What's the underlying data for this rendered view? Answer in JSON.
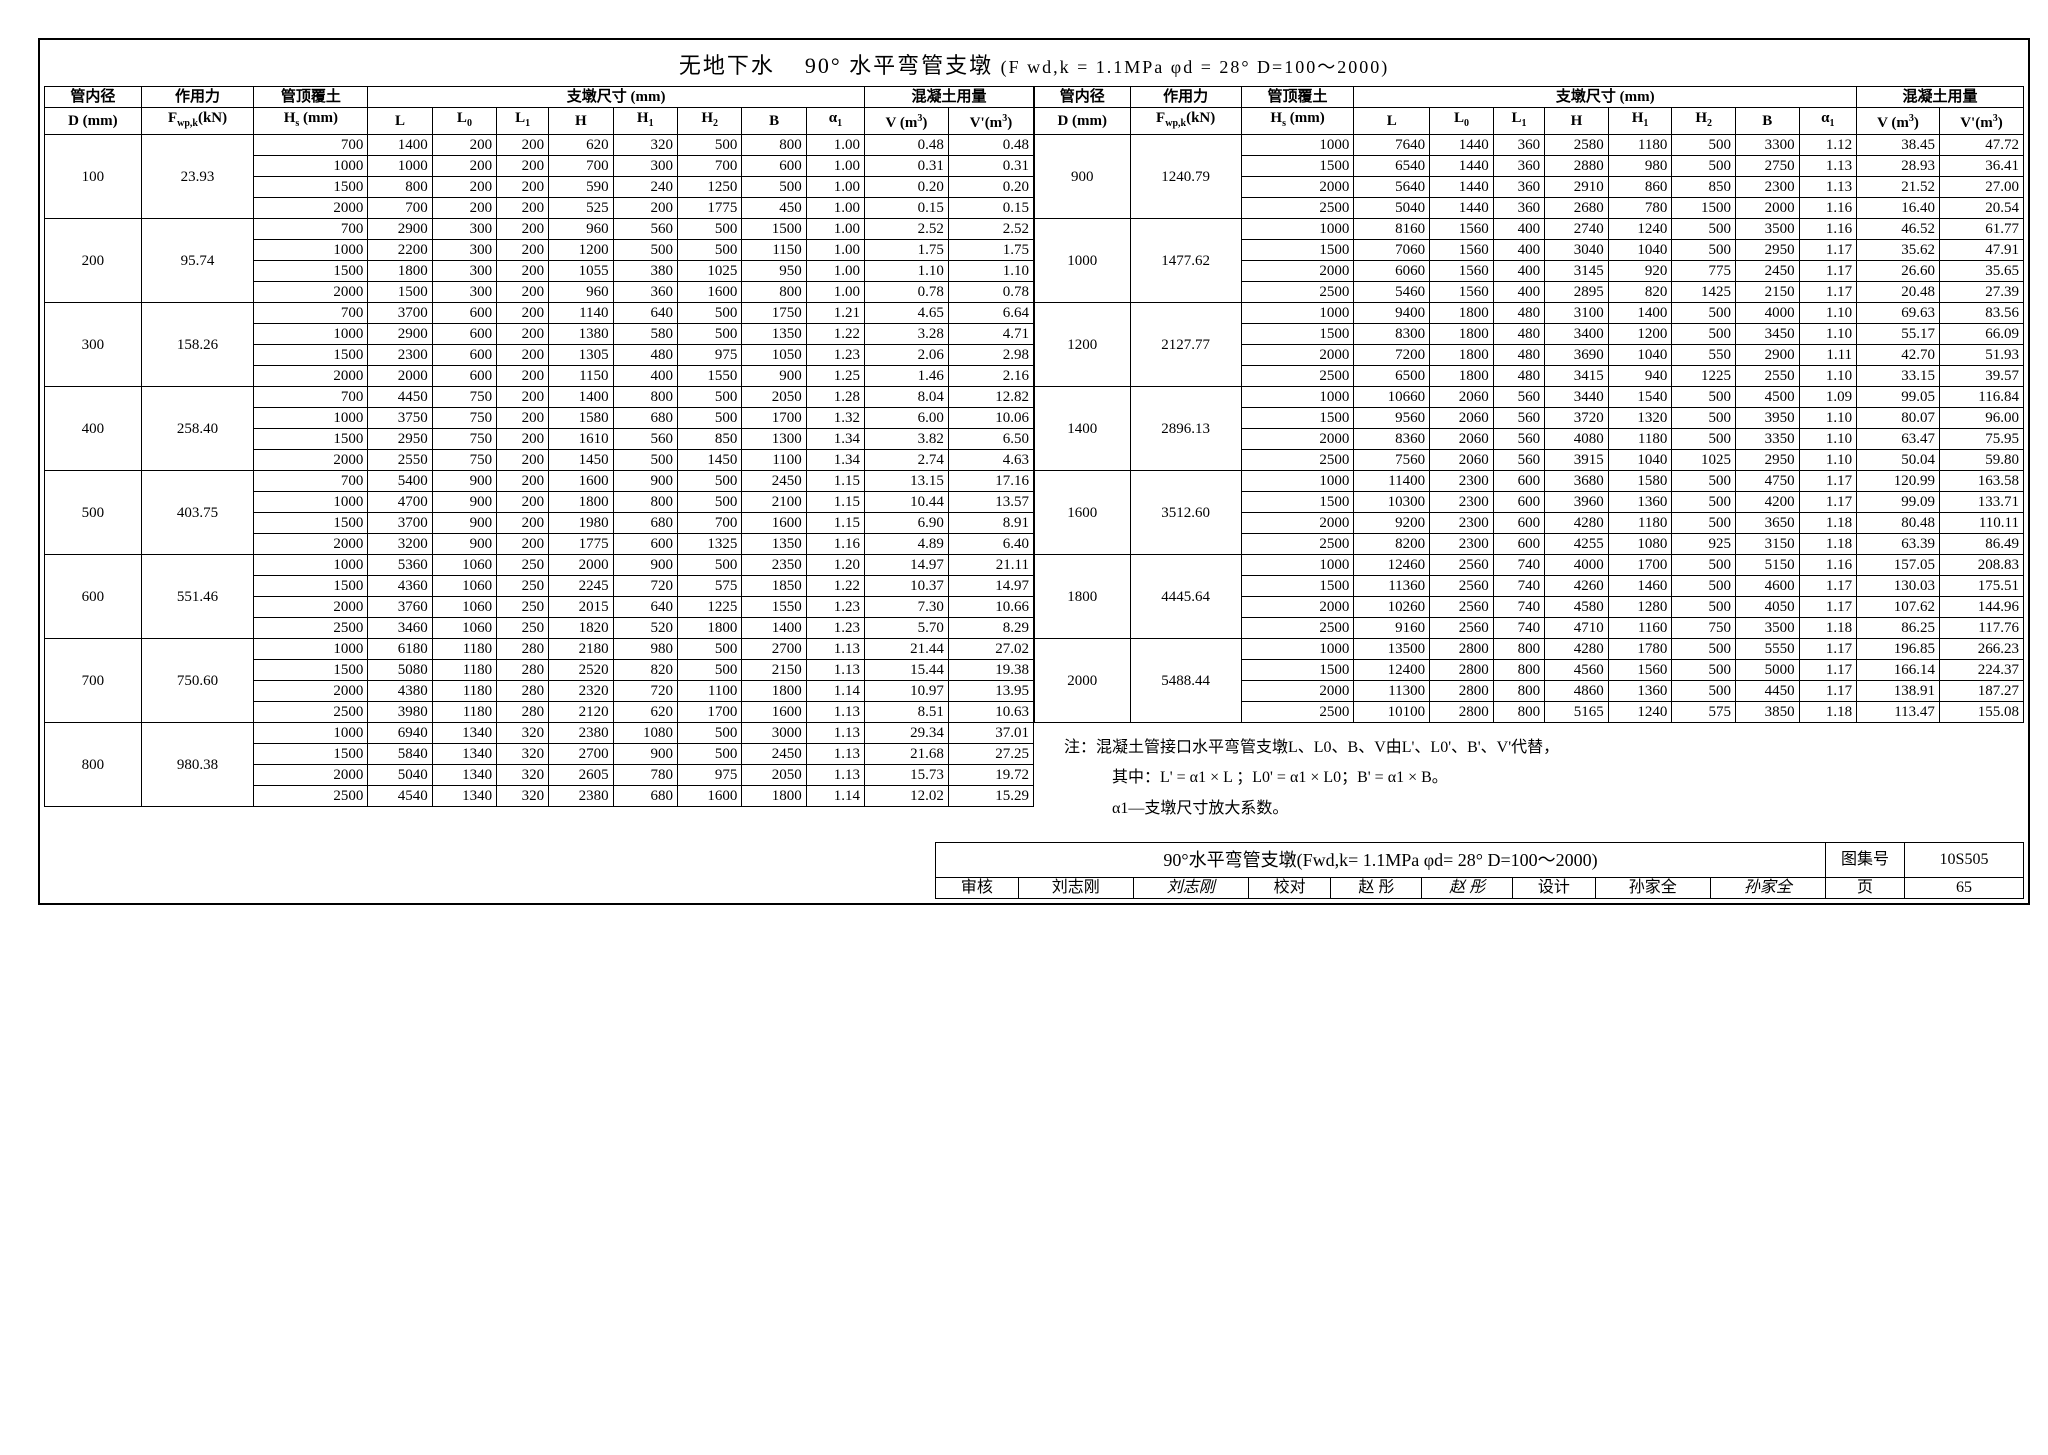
{
  "title_part1": "无地下水",
  "title_part2": "90° 水平弯管支墩",
  "title_params": "(F wd,k = 1.1MPa  φd = 28° D=100～2000)",
  "header_group": {
    "c1": "管内径",
    "c2": "作用力",
    "c3": "管顶覆土",
    "c4": "支墩尺寸 (mm)",
    "c5": "混凝土用量"
  },
  "header_sub": {
    "D": "D (mm)",
    "F": "Fwp,k(kN)",
    "Hs": "Hs (mm)",
    "L": "L",
    "L0": "L0",
    "L1": "L1",
    "H": "H",
    "H1": "H1",
    "H2": "H2",
    "B": "B",
    "a1": "α1",
    "V": "V (m³)",
    "Vp": "V'(m³)"
  },
  "left_groups": [
    {
      "D": "100",
      "F": "23.93",
      "rows": [
        [
          "700",
          "1400",
          "200",
          "200",
          "620",
          "320",
          "500",
          "800",
          "1.00",
          "0.48",
          "0.48"
        ],
        [
          "1000",
          "1000",
          "200",
          "200",
          "700",
          "300",
          "700",
          "600",
          "1.00",
          "0.31",
          "0.31"
        ],
        [
          "1500",
          "800",
          "200",
          "200",
          "590",
          "240",
          "1250",
          "500",
          "1.00",
          "0.20",
          "0.20"
        ],
        [
          "2000",
          "700",
          "200",
          "200",
          "525",
          "200",
          "1775",
          "450",
          "1.00",
          "0.15",
          "0.15"
        ]
      ]
    },
    {
      "D": "200",
      "F": "95.74",
      "rows": [
        [
          "700",
          "2900",
          "300",
          "200",
          "960",
          "560",
          "500",
          "1500",
          "1.00",
          "2.52",
          "2.52"
        ],
        [
          "1000",
          "2200",
          "300",
          "200",
          "1200",
          "500",
          "500",
          "1150",
          "1.00",
          "1.75",
          "1.75"
        ],
        [
          "1500",
          "1800",
          "300",
          "200",
          "1055",
          "380",
          "1025",
          "950",
          "1.00",
          "1.10",
          "1.10"
        ],
        [
          "2000",
          "1500",
          "300",
          "200",
          "960",
          "360",
          "1600",
          "800",
          "1.00",
          "0.78",
          "0.78"
        ]
      ]
    },
    {
      "D": "300",
      "F": "158.26",
      "rows": [
        [
          "700",
          "3700",
          "600",
          "200",
          "1140",
          "640",
          "500",
          "1750",
          "1.21",
          "4.65",
          "6.64"
        ],
        [
          "1000",
          "2900",
          "600",
          "200",
          "1380",
          "580",
          "500",
          "1350",
          "1.22",
          "3.28",
          "4.71"
        ],
        [
          "1500",
          "2300",
          "600",
          "200",
          "1305",
          "480",
          "975",
          "1050",
          "1.23",
          "2.06",
          "2.98"
        ],
        [
          "2000",
          "2000",
          "600",
          "200",
          "1150",
          "400",
          "1550",
          "900",
          "1.25",
          "1.46",
          "2.16"
        ]
      ]
    },
    {
      "D": "400",
      "F": "258.40",
      "rows": [
        [
          "700",
          "4450",
          "750",
          "200",
          "1400",
          "800",
          "500",
          "2050",
          "1.28",
          "8.04",
          "12.82"
        ],
        [
          "1000",
          "3750",
          "750",
          "200",
          "1580",
          "680",
          "500",
          "1700",
          "1.32",
          "6.00",
          "10.06"
        ],
        [
          "1500",
          "2950",
          "750",
          "200",
          "1610",
          "560",
          "850",
          "1300",
          "1.34",
          "3.82",
          "6.50"
        ],
        [
          "2000",
          "2550",
          "750",
          "200",
          "1450",
          "500",
          "1450",
          "1100",
          "1.34",
          "2.74",
          "4.63"
        ]
      ]
    },
    {
      "D": "500",
      "F": "403.75",
      "rows": [
        [
          "700",
          "5400",
          "900",
          "200",
          "1600",
          "900",
          "500",
          "2450",
          "1.15",
          "13.15",
          "17.16"
        ],
        [
          "1000",
          "4700",
          "900",
          "200",
          "1800",
          "800",
          "500",
          "2100",
          "1.15",
          "10.44",
          "13.57"
        ],
        [
          "1500",
          "3700",
          "900",
          "200",
          "1980",
          "680",
          "700",
          "1600",
          "1.15",
          "6.90",
          "8.91"
        ],
        [
          "2000",
          "3200",
          "900",
          "200",
          "1775",
          "600",
          "1325",
          "1350",
          "1.16",
          "4.89",
          "6.40"
        ]
      ]
    },
    {
      "D": "600",
      "F": "551.46",
      "rows": [
        [
          "1000",
          "5360",
          "1060",
          "250",
          "2000",
          "900",
          "500",
          "2350",
          "1.20",
          "14.97",
          "21.11"
        ],
        [
          "1500",
          "4360",
          "1060",
          "250",
          "2245",
          "720",
          "575",
          "1850",
          "1.22",
          "10.37",
          "14.97"
        ],
        [
          "2000",
          "3760",
          "1060",
          "250",
          "2015",
          "640",
          "1225",
          "1550",
          "1.23",
          "7.30",
          "10.66"
        ],
        [
          "2500",
          "3460",
          "1060",
          "250",
          "1820",
          "520",
          "1800",
          "1400",
          "1.23",
          "5.70",
          "8.29"
        ]
      ]
    },
    {
      "D": "700",
      "F": "750.60",
      "rows": [
        [
          "1000",
          "6180",
          "1180",
          "280",
          "2180",
          "980",
          "500",
          "2700",
          "1.13",
          "21.44",
          "27.02"
        ],
        [
          "1500",
          "5080",
          "1180",
          "280",
          "2520",
          "820",
          "500",
          "2150",
          "1.13",
          "15.44",
          "19.38"
        ],
        [
          "2000",
          "4380",
          "1180",
          "280",
          "2320",
          "720",
          "1100",
          "1800",
          "1.14",
          "10.97",
          "13.95"
        ],
        [
          "2500",
          "3980",
          "1180",
          "280",
          "2120",
          "620",
          "1700",
          "1600",
          "1.13",
          "8.51",
          "10.63"
        ]
      ]
    },
    {
      "D": "800",
      "F": "980.38",
      "rows": [
        [
          "1000",
          "6940",
          "1340",
          "320",
          "2380",
          "1080",
          "500",
          "3000",
          "1.13",
          "29.34",
          "37.01"
        ],
        [
          "1500",
          "5840",
          "1340",
          "320",
          "2700",
          "900",
          "500",
          "2450",
          "1.13",
          "21.68",
          "27.25"
        ],
        [
          "2000",
          "5040",
          "1340",
          "320",
          "2605",
          "780",
          "975",
          "2050",
          "1.13",
          "15.73",
          "19.72"
        ],
        [
          "2500",
          "4540",
          "1340",
          "320",
          "2380",
          "680",
          "1600",
          "1800",
          "1.14",
          "12.02",
          "15.29"
        ]
      ]
    }
  ],
  "right_groups": [
    {
      "D": "900",
      "F": "1240.79",
      "rows": [
        [
          "1000",
          "7640",
          "1440",
          "360",
          "2580",
          "1180",
          "500",
          "3300",
          "1.12",
          "38.45",
          "47.72"
        ],
        [
          "1500",
          "6540",
          "1440",
          "360",
          "2880",
          "980",
          "500",
          "2750",
          "1.13",
          "28.93",
          "36.41"
        ],
        [
          "2000",
          "5640",
          "1440",
          "360",
          "2910",
          "860",
          "850",
          "2300",
          "1.13",
          "21.52",
          "27.00"
        ],
        [
          "2500",
          "5040",
          "1440",
          "360",
          "2680",
          "780",
          "1500",
          "2000",
          "1.16",
          "16.40",
          "20.54"
        ]
      ]
    },
    {
      "D": "1000",
      "F": "1477.62",
      "rows": [
        [
          "1000",
          "8160",
          "1560",
          "400",
          "2740",
          "1240",
          "500",
          "3500",
          "1.16",
          "46.52",
          "61.77"
        ],
        [
          "1500",
          "7060",
          "1560",
          "400",
          "3040",
          "1040",
          "500",
          "2950",
          "1.17",
          "35.62",
          "47.91"
        ],
        [
          "2000",
          "6060",
          "1560",
          "400",
          "3145",
          "920",
          "775",
          "2450",
          "1.17",
          "26.60",
          "35.65"
        ],
        [
          "2500",
          "5460",
          "1560",
          "400",
          "2895",
          "820",
          "1425",
          "2150",
          "1.17",
          "20.48",
          "27.39"
        ]
      ]
    },
    {
      "D": "1200",
      "F": "2127.77",
      "rows": [
        [
          "1000",
          "9400",
          "1800",
          "480",
          "3100",
          "1400",
          "500",
          "4000",
          "1.10",
          "69.63",
          "83.56"
        ],
        [
          "1500",
          "8300",
          "1800",
          "480",
          "3400",
          "1200",
          "500",
          "3450",
          "1.10",
          "55.17",
          "66.09"
        ],
        [
          "2000",
          "7200",
          "1800",
          "480",
          "3690",
          "1040",
          "550",
          "2900",
          "1.11",
          "42.70",
          "51.93"
        ],
        [
          "2500",
          "6500",
          "1800",
          "480",
          "3415",
          "940",
          "1225",
          "2550",
          "1.10",
          "33.15",
          "39.57"
        ]
      ]
    },
    {
      "D": "1400",
      "F": "2896.13",
      "rows": [
        [
          "1000",
          "10660",
          "2060",
          "560",
          "3440",
          "1540",
          "500",
          "4500",
          "1.09",
          "99.05",
          "116.84"
        ],
        [
          "1500",
          "9560",
          "2060",
          "560",
          "3720",
          "1320",
          "500",
          "3950",
          "1.10",
          "80.07",
          "96.00"
        ],
        [
          "2000",
          "8360",
          "2060",
          "560",
          "4080",
          "1180",
          "500",
          "3350",
          "1.10",
          "63.47",
          "75.95"
        ],
        [
          "2500",
          "7560",
          "2060",
          "560",
          "3915",
          "1040",
          "1025",
          "2950",
          "1.10",
          "50.04",
          "59.80"
        ]
      ]
    },
    {
      "D": "1600",
      "F": "3512.60",
      "rows": [
        [
          "1000",
          "11400",
          "2300",
          "600",
          "3680",
          "1580",
          "500",
          "4750",
          "1.17",
          "120.99",
          "163.58"
        ],
        [
          "1500",
          "10300",
          "2300",
          "600",
          "3960",
          "1360",
          "500",
          "4200",
          "1.17",
          "99.09",
          "133.71"
        ],
        [
          "2000",
          "9200",
          "2300",
          "600",
          "4280",
          "1180",
          "500",
          "3650",
          "1.18",
          "80.48",
          "110.11"
        ],
        [
          "2500",
          "8200",
          "2300",
          "600",
          "4255",
          "1080",
          "925",
          "3150",
          "1.18",
          "63.39",
          "86.49"
        ]
      ]
    },
    {
      "D": "1800",
      "F": "4445.64",
      "rows": [
        [
          "1000",
          "12460",
          "2560",
          "740",
          "4000",
          "1700",
          "500",
          "5150",
          "1.16",
          "157.05",
          "208.83"
        ],
        [
          "1500",
          "11360",
          "2560",
          "740",
          "4260",
          "1460",
          "500",
          "4600",
          "1.17",
          "130.03",
          "175.51"
        ],
        [
          "2000",
          "10260",
          "2560",
          "740",
          "4580",
          "1280",
          "500",
          "4050",
          "1.17",
          "107.62",
          "144.96"
        ],
        [
          "2500",
          "9160",
          "2560",
          "740",
          "4710",
          "1160",
          "750",
          "3500",
          "1.18",
          "86.25",
          "117.76"
        ]
      ]
    },
    {
      "D": "2000",
      "F": "5488.44",
      "rows": [
        [
          "1000",
          "13500",
          "2800",
          "800",
          "4280",
          "1780",
          "500",
          "5550",
          "1.17",
          "196.85",
          "266.23"
        ],
        [
          "1500",
          "12400",
          "2800",
          "800",
          "4560",
          "1560",
          "500",
          "5000",
          "1.17",
          "166.14",
          "224.37"
        ],
        [
          "2000",
          "11300",
          "2800",
          "800",
          "4860",
          "1360",
          "500",
          "4450",
          "1.17",
          "138.91",
          "187.27"
        ],
        [
          "2500",
          "10100",
          "2800",
          "800",
          "5165",
          "1240",
          "575",
          "3850",
          "1.18",
          "113.47",
          "155.08"
        ]
      ]
    }
  ],
  "note": {
    "l1": "注：混凝土管接口水平弯管支墩L、L0、B、V由L'、L0'、B'、V'代替，",
    "l2": "其中：L' = α1 × L ；L0' = α1 × L0；B' = α1 × B。",
    "l3": "α1—支墩尺寸放大系数。"
  },
  "footer": {
    "title": "90°水平弯管支墩(Fwd,k= 1.1MPa  φd= 28° D=100～2000)",
    "book_label": "图集号",
    "book_no": "10S505",
    "row2": {
      "审核": "审核",
      "审核name": "刘志刚",
      "审核sig": "刘志刚",
      "校对": "校对",
      "校对name": "赵 彤",
      "校对sig": "赵 彤",
      "设计": "设计",
      "设计name": "孙家全",
      "设计sig": "孙家全",
      "页": "页",
      "页no": "65"
    }
  }
}
